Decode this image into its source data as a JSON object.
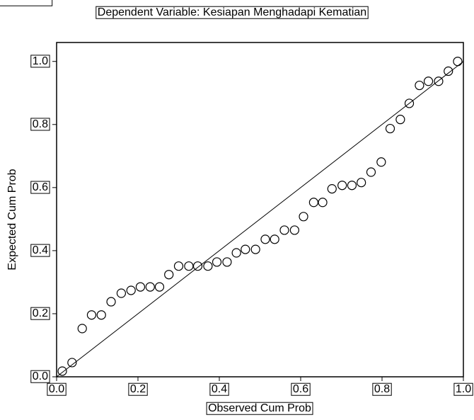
{
  "chart_data": {
    "type": "scatter",
    "title": "Dependent Variable: Kesiapan Menghadapi Kematian",
    "x_label": "Observed Cum Prob",
    "y_label": "Expected Cum Prob",
    "color": "#000000",
    "diagonal": true,
    "xlim": [
      0,
      1.0
    ],
    "ylim": [
      0,
      1.06
    ],
    "xticks": [
      {
        "value": 0,
        "label": "0.0"
      },
      {
        "value": 0.2,
        "label": "0.2"
      },
      {
        "value": 0.4,
        "label": "0.4"
      },
      {
        "value": 0.6,
        "label": "0.6"
      },
      {
        "value": 0.8,
        "label": "0.8"
      },
      {
        "value": 1.0,
        "label": "1.0"
      }
    ],
    "yticks": [
      {
        "value": 0,
        "label": "0.0"
      },
      {
        "value": 0.2,
        "label": "0.2"
      },
      {
        "value": 0.4,
        "label": "0.4"
      },
      {
        "value": 0.6,
        "label": "0.6"
      },
      {
        "value": 0.8,
        "label": "0.8"
      },
      {
        "value": 1.0,
        "label": "1.0"
      }
    ],
    "x": [
      0.014,
      0.038,
      0.063,
      0.086,
      0.11,
      0.134,
      0.159,
      0.183,
      0.206,
      0.23,
      0.253,
      0.276,
      0.3,
      0.325,
      0.347,
      0.372,
      0.394,
      0.419,
      0.442,
      0.464,
      0.489,
      0.513,
      0.536,
      0.56,
      0.585,
      0.607,
      0.632,
      0.654,
      0.677,
      0.702,
      0.726,
      0.749,
      0.773,
      0.798,
      0.82,
      0.845,
      0.867,
      0.892,
      0.914,
      0.939,
      0.963,
      0.986
    ],
    "values": [
      0.018,
      0.045,
      0.153,
      0.196,
      0.196,
      0.238,
      0.265,
      0.274,
      0.285,
      0.285,
      0.285,
      0.324,
      0.351,
      0.351,
      0.351,
      0.351,
      0.364,
      0.364,
      0.393,
      0.404,
      0.404,
      0.436,
      0.436,
      0.465,
      0.465,
      0.508,
      0.553,
      0.553,
      0.596,
      0.607,
      0.607,
      0.616,
      0.649,
      0.681,
      0.787,
      0.816,
      0.867,
      0.924,
      0.937,
      0.937,
      0.969,
      1.0
    ]
  }
}
